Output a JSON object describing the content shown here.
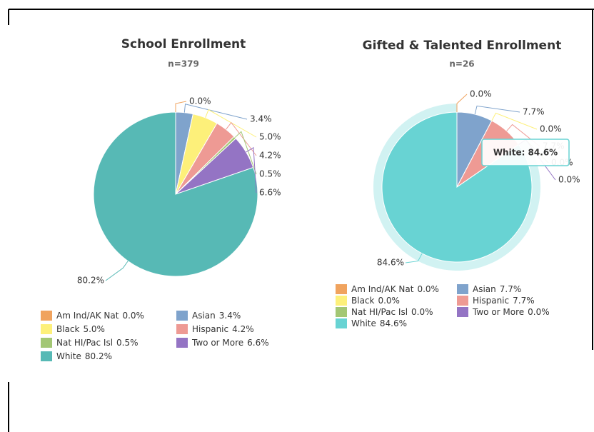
{
  "chart_data": [
    {
      "type": "pie",
      "title": "School Enrollment",
      "subtitle": "n=379",
      "categories": [
        "Am Ind/AK Nat",
        "Asian",
        "Black",
        "Hispanic",
        "Nat HI/Pac Isl",
        "Two or More",
        "White"
      ],
      "values": [
        0.0,
        3.4,
        5.0,
        4.2,
        0.5,
        6.6,
        80.2
      ],
      "value_labels": [
        "0.0%",
        "3.4%",
        "5.0%",
        "4.2%",
        "0.5%",
        "6.6%",
        "80.2%"
      ],
      "colors": [
        "#f0a35e",
        "#7fa3cc",
        "#fdf07a",
        "#ee9a94",
        "#a3c774",
        "#9474c4",
        "#57b9b5"
      ]
    },
    {
      "type": "pie",
      "title": "Gifted & Talented Enrollment",
      "subtitle": "n=26",
      "categories": [
        "Am Ind/AK Nat",
        "Asian",
        "Black",
        "Hispanic",
        "Nat HI/Pac Isl",
        "Two or More",
        "White"
      ],
      "values": [
        0.0,
        7.7,
        0.0,
        7.7,
        0.0,
        0.0,
        84.6
      ],
      "value_labels": [
        "0.0%",
        "7.7%",
        "0.0%",
        "7.7%",
        "0.0%",
        "0.0%",
        "84.6%"
      ],
      "colors": [
        "#f0a35e",
        "#7fa3cc",
        "#fdf07a",
        "#ee9a94",
        "#a3c774",
        "#9474c4",
        "#68d3d3"
      ],
      "tooltip": "White: 84.6%"
    }
  ]
}
